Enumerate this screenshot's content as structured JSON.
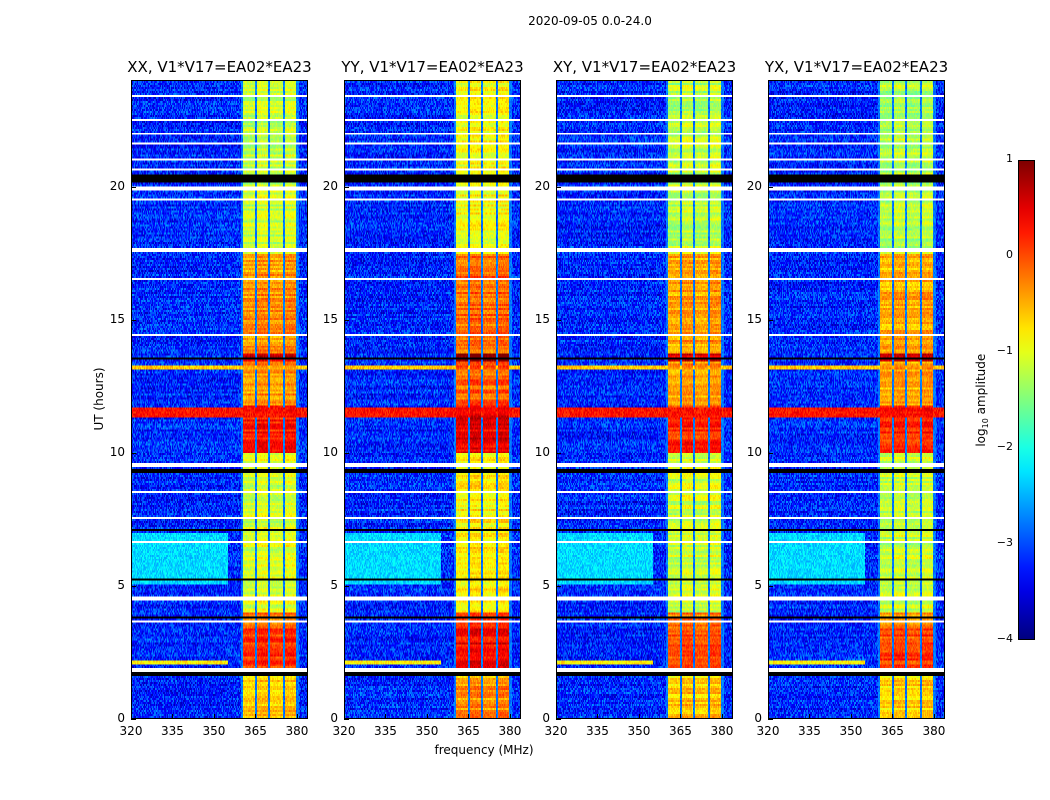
{
  "chart_data": {
    "type": "heatmap",
    "title": "2020-09-05 0.0-24.0",
    "xlabel": "frequency (MHz)",
    "ylabel": "UT (hours)",
    "xlim": [
      320,
      384
    ],
    "ylim": [
      0,
      24
    ],
    "xticks": [
      "320",
      "335",
      "350",
      "365",
      "380"
    ],
    "xtick_values": [
      320,
      335,
      350,
      365,
      380
    ],
    "yticks": [
      "0",
      "5",
      "10",
      "15",
      "20"
    ],
    "ytick_values": [
      0,
      5,
      10,
      15,
      20
    ],
    "colormap": "jet",
    "colorbar": {
      "label_main": "log",
      "label_sub": "10",
      "label_rest": " amplitude",
      "range": [
        -4,
        1
      ],
      "ticks": [
        "−4",
        "−3",
        "−2",
        "−1",
        "0",
        "1"
      ],
      "tick_values": [
        -4,
        -3,
        -2,
        -1,
        0,
        1
      ]
    },
    "panels": [
      {
        "title": "XX, V1*V17=EA02*EA23",
        "band_offset": 0.0
      },
      {
        "title": "YY, V1*V17=EA02*EA23",
        "band_offset": 0.25
      },
      {
        "title": "XY, V1*V17=EA02*EA23",
        "band_offset": -0.05
      },
      {
        "title": "YX, V1*V17=EA02*EA23",
        "band_offset": -0.1
      }
    ],
    "background_level": -3.2,
    "rfi_subbands_mhz": [
      [
        360.6,
        365.0
      ],
      [
        365.6,
        369.6
      ],
      [
        370.4,
        375.1
      ],
      [
        375.8,
        380.1
      ]
    ],
    "rfi_levels_by_time": [
      {
        "t0": 0.0,
        "t1": 1.5,
        "level": -0.6
      },
      {
        "t0": 1.8,
        "t1": 3.4,
        "level": 0.1
      },
      {
        "t0": 3.4,
        "t1": 4.0,
        "level": -0.2
      },
      {
        "t0": 4.0,
        "t1": 10.0,
        "level": -1.1
      },
      {
        "t0": 10.0,
        "t1": 11.8,
        "level": 0.2
      },
      {
        "t0": 11.8,
        "t1": 13.4,
        "level": -0.4
      },
      {
        "t0": 13.4,
        "t1": 13.7,
        "level": 0.6
      },
      {
        "t0": 13.7,
        "t1": 17.5,
        "level": -0.4
      },
      {
        "t0": 17.5,
        "t1": 24.0,
        "level": -1.2
      }
    ],
    "broadband_events": [
      {
        "t0": 11.3,
        "t1": 11.7,
        "level": 0.3
      },
      {
        "t0": 13.1,
        "t1": 13.3,
        "level": -0.6
      },
      {
        "t0": 5.0,
        "t1": 7.0,
        "level": -2.3,
        "fmax": 355
      },
      {
        "t0": 2.0,
        "t1": 2.2,
        "level": -0.8,
        "fmax": 355
      }
    ],
    "flagged_rows_white": [
      [
        1.75,
        1.85
      ],
      [
        4.45,
        4.6
      ],
      [
        9.45,
        9.6
      ],
      [
        17.55,
        17.7
      ],
      [
        19.5,
        19.6
      ],
      [
        19.9,
        20.05
      ],
      [
        20.6,
        20.7
      ],
      [
        21.0,
        21.05
      ],
      [
        21.6,
        21.65
      ],
      [
        22.0,
        22.05
      ],
      [
        22.5,
        22.55
      ],
      [
        23.0,
        23.05
      ],
      [
        23.4,
        23.45
      ],
      [
        18.5,
        18.55
      ],
      [
        16.5,
        16.55
      ],
      [
        12.5,
        12.55
      ],
      [
        8.5,
        8.55
      ],
      [
        6.6,
        6.65
      ],
      [
        3.6,
        3.65
      ],
      [
        14.4,
        14.45
      ],
      [
        7.5,
        7.55
      ]
    ],
    "dropout_rows_black": [
      [
        1.55,
        1.7
      ],
      [
        9.25,
        9.35
      ],
      [
        20.2,
        20.45
      ],
      [
        7.05,
        7.15
      ],
      [
        13.5,
        13.55
      ],
      [
        3.75,
        3.8
      ],
      [
        5.2,
        5.25
      ]
    ]
  }
}
